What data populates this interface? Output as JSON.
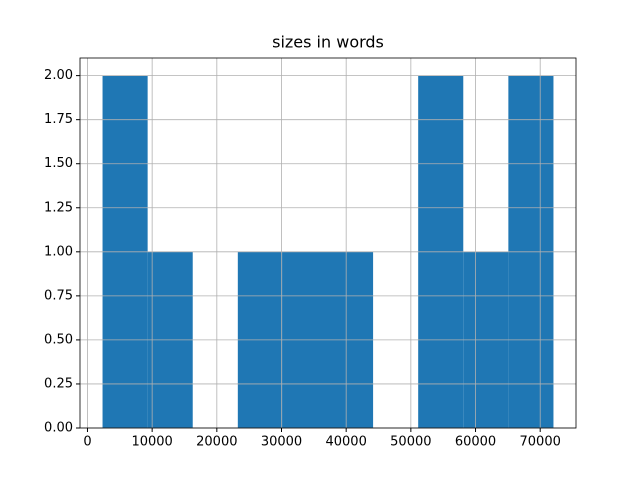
{
  "chart_data": {
    "type": "histogram",
    "title": "sizes in words",
    "bins": [
      2330,
      9302,
      16274,
      23246,
      30218,
      37190,
      44162,
      51134,
      58106,
      65078,
      72050
    ],
    "values": [
      2,
      1,
      0,
      1,
      1,
      1,
      0,
      2,
      1,
      2
    ],
    "color": "#1f77b4",
    "xlim": [
      -1156,
      75536
    ],
    "xticks": [
      0,
      10000,
      20000,
      30000,
      40000,
      50000,
      60000,
      70000
    ],
    "ylim": [
      0,
      2.1
    ],
    "yticks": [
      {
        "value": 0,
        "label": "0.00"
      },
      {
        "value": 0.25,
        "label": "0.25"
      },
      {
        "value": 0.5,
        "label": "0.50"
      },
      {
        "value": 0.75,
        "label": "0.75"
      },
      {
        "value": 1,
        "label": "1.00"
      },
      {
        "value": 1.25,
        "label": "1.25"
      },
      {
        "value": 1.5,
        "label": "1.50"
      },
      {
        "value": 1.75,
        "label": "1.75"
      },
      {
        "value": 2,
        "label": "2.00"
      }
    ],
    "grid": true
  }
}
